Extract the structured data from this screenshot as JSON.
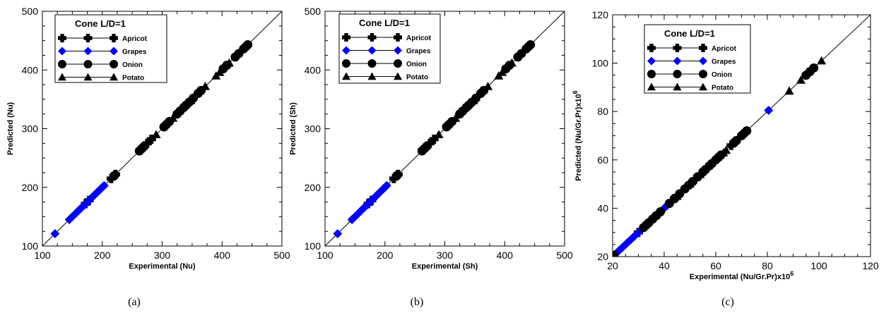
{
  "chart_data": [
    {
      "type": "scatter",
      "panel_label": "(a)",
      "xlabel": "Experimental (Nu)",
      "ylabel": "Predicted (Nu)",
      "xlim": [
        100,
        500
      ],
      "ylim": [
        100,
        500
      ],
      "xticks": [
        100,
        200,
        300,
        400,
        500
      ],
      "yticks": [
        100,
        200,
        300,
        400,
        500
      ],
      "reference_line": "y = x",
      "legend_title": "Cone L/D=1",
      "legend_position": "top-left",
      "series": [
        {
          "name": "Apricot",
          "marker": "plus",
          "color": "#000000",
          "x": [
            172,
            178,
            215,
            222,
            268,
            275,
            282
          ],
          "y": [
            172,
            178,
            215,
            222,
            268,
            275,
            282
          ]
        },
        {
          "name": "Grapes",
          "marker": "diamond",
          "color": "#0000ff",
          "x": [
            121,
            145,
            150,
            155,
            160,
            165,
            170,
            175,
            180,
            185,
            188,
            192,
            196,
            200,
            203
          ],
          "y": [
            121,
            145,
            150,
            155,
            160,
            165,
            170,
            175,
            180,
            185,
            188,
            192,
            196,
            200,
            203
          ]
        },
        {
          "name": "Onion",
          "marker": "circle",
          "color": "#000000",
          "x": [
            220,
            262,
            266,
            270,
            303,
            307,
            312,
            325,
            330,
            336,
            340,
            345,
            352,
            360,
            365,
            402,
            408,
            422,
            428,
            436,
            440,
            443
          ],
          "y": [
            220,
            262,
            266,
            270,
            303,
            307,
            312,
            325,
            330,
            336,
            340,
            345,
            352,
            360,
            365,
            402,
            408,
            422,
            428,
            436,
            440,
            443
          ]
        },
        {
          "name": "Potato",
          "marker": "triangle",
          "color": "#000000",
          "x": [
            290,
            318,
            348,
            372,
            390,
            396,
            412
          ],
          "y": [
            290,
            318,
            348,
            372,
            390,
            396,
            412
          ]
        }
      ]
    },
    {
      "type": "scatter",
      "panel_label": "(b)",
      "xlabel": "Experimental (Sh)",
      "ylabel": "Predicted (Sh)",
      "xlim": [
        100,
        500
      ],
      "ylim": [
        100,
        500
      ],
      "xticks": [
        100,
        200,
        300,
        400,
        500
      ],
      "yticks": [
        100,
        200,
        300,
        400,
        500
      ],
      "reference_line": "y = x",
      "legend_title": "Cone L/D=1",
      "legend_position": "top-left",
      "series": [
        {
          "name": "Apricot",
          "marker": "plus",
          "color": "#000000",
          "x": [
            172,
            178,
            215,
            222,
            268,
            275,
            282
          ],
          "y": [
            172,
            178,
            215,
            222,
            268,
            275,
            282
          ]
        },
        {
          "name": "Grapes",
          "marker": "diamond",
          "color": "#0000ff",
          "x": [
            121,
            145,
            150,
            155,
            160,
            165,
            170,
            175,
            180,
            185,
            188,
            192,
            196,
            200,
            203
          ],
          "y": [
            121,
            145,
            150,
            155,
            160,
            165,
            170,
            175,
            180,
            185,
            188,
            192,
            196,
            200,
            203
          ]
        },
        {
          "name": "Onion",
          "marker": "circle",
          "color": "#000000",
          "x": [
            220,
            262,
            266,
            270,
            303,
            307,
            312,
            325,
            330,
            336,
            340,
            345,
            352,
            360,
            365,
            402,
            408,
            422,
            428,
            436,
            440,
            443
          ],
          "y": [
            220,
            262,
            266,
            270,
            303,
            307,
            312,
            325,
            330,
            336,
            340,
            345,
            352,
            360,
            365,
            402,
            408,
            422,
            428,
            436,
            440,
            443
          ]
        },
        {
          "name": "Potato",
          "marker": "triangle",
          "color": "#000000",
          "x": [
            290,
            318,
            348,
            372,
            390,
            396,
            412
          ],
          "y": [
            290,
            318,
            348,
            372,
            390,
            396,
            412
          ]
        }
      ]
    },
    {
      "type": "scatter",
      "panel_label": "(c)",
      "xlabel": "Experimental (Nu/Gr.Pr)x10",
      "xlabel_sup": "6",
      "ylabel": "Predicted  (Nu/Gr.Pr)x10",
      "ylabel_sup": "6",
      "xlim": [
        20,
        120
      ],
      "ylim": [
        20,
        120
      ],
      "xticks": [
        20,
        40,
        60,
        80,
        100,
        120
      ],
      "yticks": [
        20,
        40,
        60,
        80,
        100,
        120
      ],
      "reference_line": "y = x",
      "legend_title": "Cone L/D=1",
      "legend_position": "top-left",
      "series": [
        {
          "name": "Apricot",
          "marker": "plus",
          "color": "#000000",
          "x": [
            30,
            36,
            44,
            52,
            58,
            66
          ],
          "y": [
            30,
            36,
            44,
            52,
            58,
            66
          ]
        },
        {
          "name": "Grapes",
          "marker": "diamond",
          "color": "#0000ff",
          "x": [
            21,
            22.5,
            24,
            25.5,
            27,
            28.5,
            30,
            40,
            41.5,
            80.5
          ],
          "y": [
            21,
            22.5,
            24,
            25.5,
            27,
            28.5,
            30,
            40,
            41.5,
            80.5
          ]
        },
        {
          "name": "Onion",
          "marker": "circle",
          "color": "#000000",
          "x": [
            20.5,
            32,
            33,
            34,
            35.5,
            37,
            38.5,
            42,
            44,
            46,
            48,
            49.5,
            51,
            53,
            55,
            56,
            57.5,
            58.5,
            60,
            61,
            62,
            67,
            68,
            70,
            71,
            72,
            95,
            96.5,
            98
          ],
          "y": [
            20.5,
            32,
            33,
            34,
            35.5,
            37,
            38.5,
            42,
            44,
            46,
            48,
            49.5,
            51,
            53,
            55,
            56,
            57.5,
            58.5,
            60,
            61,
            62,
            67,
            68,
            70,
            71,
            72,
            95,
            96.5,
            98
          ]
        },
        {
          "name": "Potato",
          "marker": "triangle",
          "color": "#000000",
          "x": [
            45,
            50,
            54,
            63,
            64,
            88.5,
            93,
            101
          ],
          "y": [
            45,
            50,
            54,
            63,
            64,
            88.5,
            93,
            101
          ]
        }
      ]
    }
  ]
}
